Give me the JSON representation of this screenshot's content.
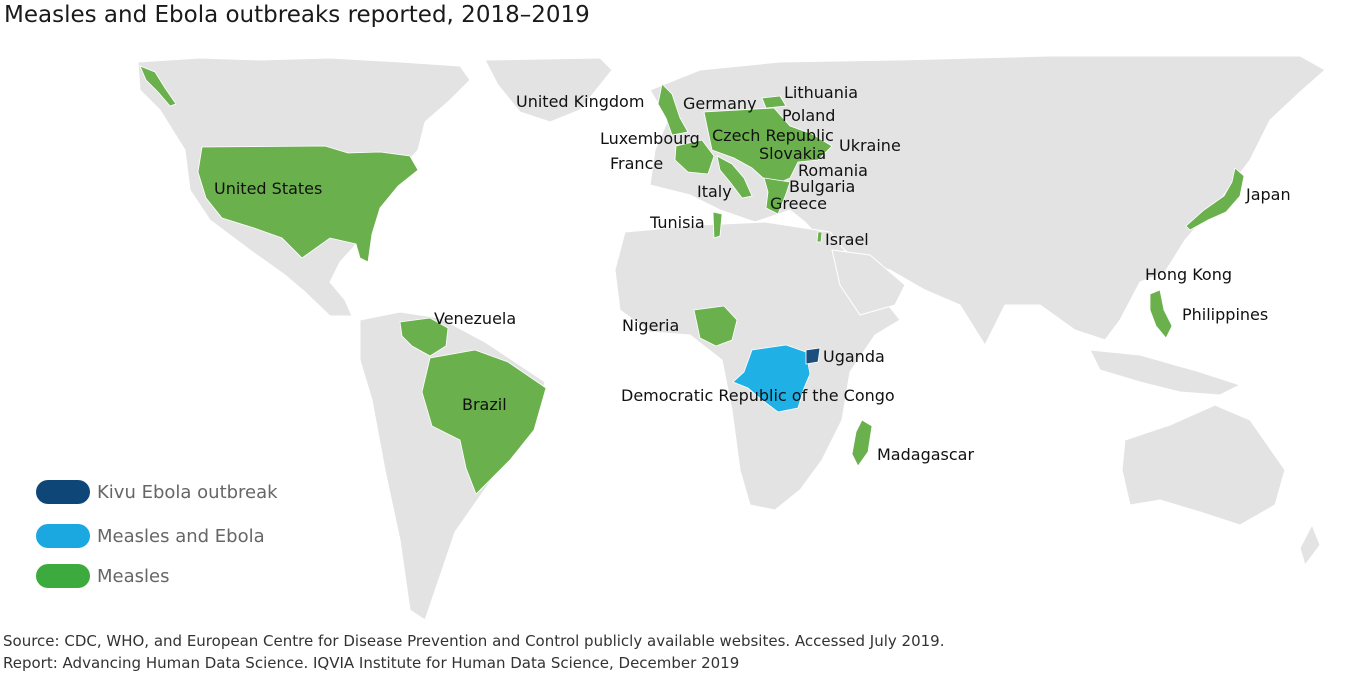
{
  "title": "Measles and Ebola outbreaks reported, 2018–2019",
  "colors": {
    "land": "#e3e3e3",
    "border": "#ffffff",
    "measles": "#6ab04c",
    "measles_legend": "#3caa3c",
    "measles_ebola": "#1fb0e6",
    "measles_ebola_legend": "#1ba7e0",
    "ebola": "#1a4f7e",
    "ebola_legend": "#0e4678"
  },
  "countries": {
    "united_states": "United States",
    "venezuela": "Venezuela",
    "brazil": "Brazil",
    "united_kingdom": "United Kingdom",
    "germany": "Germany",
    "lithuania": "Lithuania",
    "poland": "Poland",
    "luxembourg": "Luxembourg",
    "czech_republic": "Czech Republic",
    "ukraine": "Ukraine",
    "slovakia": "Slovakia",
    "france": "France",
    "romania": "Romania",
    "bulgaria": "Bulgaria",
    "italy": "Italy",
    "greece": "Greece",
    "tunisia": "Tunisia",
    "israel": "Israel",
    "japan": "Japan",
    "hong_kong": "Hong Kong",
    "philippines": "Philippines",
    "nigeria": "Nigeria",
    "uganda": "Uganda",
    "drc": "Democratic Republic of the Congo",
    "madagascar": "Madagascar"
  },
  "legend": {
    "ebola": "Kivu Ebola outbreak",
    "measles_ebola": "Measles and Ebola",
    "measles": "Measles"
  },
  "footer": {
    "source": "Source: CDC, WHO, and European Centre for Disease Prevention and Control publicly available websites. Accessed July 2019.",
    "report": "Report: Advancing Human Data Science. IQVIA Institute for Human Data Science, December 2019"
  }
}
